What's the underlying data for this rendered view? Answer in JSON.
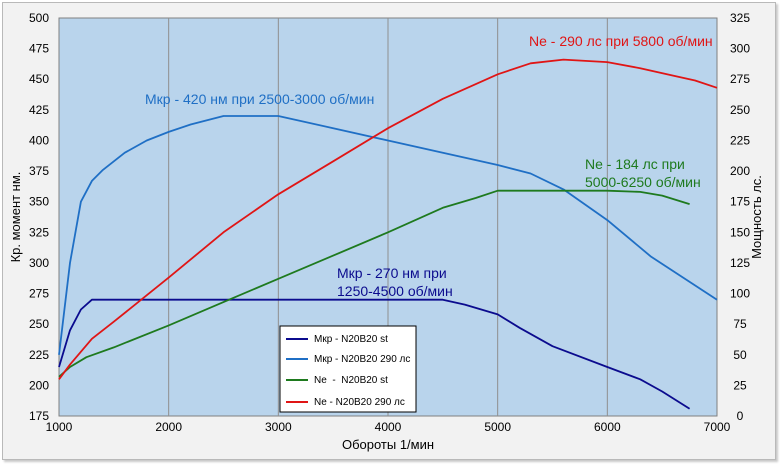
{
  "chart_data": {
    "type": "line",
    "xlabel": "Обороты 1/мин",
    "ylabel_left": "Кр. момент нм.",
    "ylabel_right": "Мощность лс.",
    "xlim": [
      1000,
      7000
    ],
    "ylim_left": [
      175,
      500
    ],
    "ylim_right": [
      0,
      325
    ],
    "x_ticks": [
      "1000",
      "2000",
      "3000",
      "4000",
      "5000",
      "6000",
      "7000"
    ],
    "y_left_ticks": [
      "175",
      "200",
      "225",
      "250",
      "275",
      "300",
      "325",
      "350",
      "375",
      "400",
      "425",
      "450",
      "475",
      "500"
    ],
    "y_right_ticks": [
      "0",
      "25",
      "50",
      "75",
      "100",
      "125",
      "150",
      "175",
      "200",
      "225",
      "250",
      "275",
      "300",
      "325"
    ],
    "grid": "vertical",
    "plot_background": "#b9d4ec",
    "series": [
      {
        "name": "Мкр - N20B20 st",
        "axis": "left",
        "color": "#0b0b8e",
        "x": [
          1000,
          1100,
          1200,
          1300,
          1500,
          2000,
          2500,
          3000,
          3500,
          4000,
          4500,
          4700,
          5000,
          5200,
          5500,
          6000,
          6300,
          6500,
          6750
        ],
        "y": [
          215,
          245,
          262,
          270,
          270,
          270,
          270,
          270,
          270,
          270,
          270,
          266,
          258,
          247,
          232,
          215,
          205,
          195,
          181
        ]
      },
      {
        "name": "Мкр - N20B20 290 лс",
        "axis": "left",
        "color": "#1f6fc5",
        "x": [
          1000,
          1100,
          1200,
          1300,
          1400,
          1600,
          1800,
          2000,
          2200,
          2500,
          2800,
          3000,
          3500,
          4000,
          4500,
          5000,
          5300,
          5600,
          6000,
          6400,
          7000
        ],
        "y": [
          225,
          300,
          350,
          367,
          376,
          390,
          400,
          407,
          413,
          420,
          420,
          420,
          410,
          400,
          390,
          380,
          373,
          360,
          335,
          305,
          270
        ]
      },
      {
        "name": "Ne  -  N20B20 st",
        "axis": "right",
        "color": "#1e7a1e",
        "x": [
          1000,
          1100,
          1250,
          1500,
          2000,
          2500,
          3000,
          3500,
          4000,
          4500,
          4800,
          5000,
          5500,
          6000,
          6300,
          6500,
          6750
        ],
        "y": [
          32,
          40,
          48,
          56,
          74,
          93,
          112,
          131,
          150,
          170,
          178,
          184,
          184,
          184,
          183,
          180,
          173
        ]
      },
      {
        "name": "Ne - N20B20 290 лс",
        "axis": "right",
        "color": "#e01515",
        "x": [
          1000,
          1100,
          1300,
          1500,
          2000,
          2500,
          3000,
          3500,
          4000,
          4500,
          5000,
          5300,
          5600,
          5800,
          6000,
          6300,
          6600,
          6800,
          7000
        ],
        "y": [
          30,
          42,
          63,
          77,
          113,
          150,
          181,
          208,
          235,
          259,
          279,
          288,
          291,
          290,
          289,
          284,
          278,
          274,
          268
        ]
      }
    ],
    "annotations": [
      {
        "id": "red",
        "lines": [
          "Ne - 290 лс при 5800 об/мин"
        ],
        "color": "#e01515"
      },
      {
        "id": "lightblue",
        "lines": [
          "Мкр - 420 нм при 2500-3000 об/мин"
        ],
        "color": "#1f6fc5"
      },
      {
        "id": "green",
        "lines": [
          "Ne - 184 лс при",
          "5000-6250 об/мин"
        ],
        "color": "#1e7a1e"
      },
      {
        "id": "navy",
        "lines": [
          "Мкр - 270 нм при",
          "1250-4500 об/мин"
        ],
        "color": "#0b0b8e"
      }
    ],
    "legend_position": "bottom-left"
  }
}
